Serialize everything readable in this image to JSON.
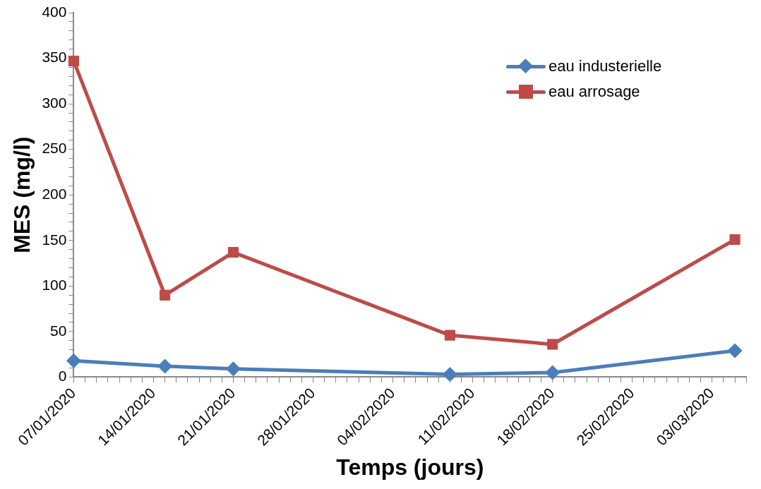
{
  "chart_data": {
    "type": "line",
    "xlabel": "Temps (jours)",
    "ylabel": "MES (mg/l)",
    "x": [
      "2020-01-07",
      "2020-01-15",
      "2020-01-21",
      "2020-02-09",
      "2020-02-18",
      "2020-03-05"
    ],
    "series": [
      {
        "name": "eau industerielle",
        "color": "#4a7ebb",
        "marker": "diamond",
        "values": [
          18,
          12,
          9,
          3,
          5,
          29
        ]
      },
      {
        "name": "eau arrosage",
        "color": "#be4b48",
        "marker": "square",
        "values": [
          347,
          90,
          137,
          46,
          36,
          151
        ]
      }
    ],
    "xlim": [
      "2020-01-07",
      "2020-03-06"
    ],
    "xticks": [
      {
        "value": "2020-01-07",
        "label": "07/01/2020"
      },
      {
        "value": "2020-01-08",
        "label": null
      },
      {
        "value": "2020-01-09",
        "label": null
      },
      {
        "value": "2020-01-10",
        "label": null
      },
      {
        "value": "2020-01-11",
        "label": null
      },
      {
        "value": "2020-01-12",
        "label": null
      },
      {
        "value": "2020-01-13",
        "label": null
      },
      {
        "value": "2020-01-14",
        "label": "14/01/2020"
      },
      {
        "value": "2020-01-15",
        "label": null
      },
      {
        "value": "2020-01-16",
        "label": null
      },
      {
        "value": "2020-01-17",
        "label": null
      },
      {
        "value": "2020-01-18",
        "label": null
      },
      {
        "value": "2020-01-19",
        "label": null
      },
      {
        "value": "2020-01-20",
        "label": null
      },
      {
        "value": "2020-01-21",
        "label": "21/01/2020"
      },
      {
        "value": "2020-01-22",
        "label": null
      },
      {
        "value": "2020-01-23",
        "label": null
      },
      {
        "value": "2020-01-24",
        "label": null
      },
      {
        "value": "2020-01-25",
        "label": null
      },
      {
        "value": "2020-01-26",
        "label": null
      },
      {
        "value": "2020-01-27",
        "label": null
      },
      {
        "value": "2020-01-28",
        "label": "28/01/2020"
      },
      {
        "value": "2020-01-29",
        "label": null
      },
      {
        "value": "2020-01-30",
        "label": null
      },
      {
        "value": "2020-01-31",
        "label": null
      },
      {
        "value": "2020-02-01",
        "label": null
      },
      {
        "value": "2020-02-02",
        "label": null
      },
      {
        "value": "2020-02-03",
        "label": null
      },
      {
        "value": "2020-02-04",
        "label": "04/02/2020"
      },
      {
        "value": "2020-02-05",
        "label": null
      },
      {
        "value": "2020-02-06",
        "label": null
      },
      {
        "value": "2020-02-07",
        "label": null
      },
      {
        "value": "2020-02-08",
        "label": null
      },
      {
        "value": "2020-02-09",
        "label": null
      },
      {
        "value": "2020-02-10",
        "label": null
      },
      {
        "value": "2020-02-11",
        "label": "11/02/2020"
      },
      {
        "value": "2020-02-12",
        "label": null
      },
      {
        "value": "2020-02-13",
        "label": null
      },
      {
        "value": "2020-02-14",
        "label": null
      },
      {
        "value": "2020-02-15",
        "label": null
      },
      {
        "value": "2020-02-16",
        "label": null
      },
      {
        "value": "2020-02-17",
        "label": null
      },
      {
        "value": "2020-02-18",
        "label": "18/02/2020"
      },
      {
        "value": "2020-02-19",
        "label": null
      },
      {
        "value": "2020-02-20",
        "label": null
      },
      {
        "value": "2020-02-21",
        "label": null
      },
      {
        "value": "2020-02-22",
        "label": null
      },
      {
        "value": "2020-02-23",
        "label": null
      },
      {
        "value": "2020-02-24",
        "label": null
      },
      {
        "value": "2020-02-25",
        "label": "25/02/2020"
      },
      {
        "value": "2020-02-26",
        "label": null
      },
      {
        "value": "2020-02-27",
        "label": null
      },
      {
        "value": "2020-02-28",
        "label": null
      },
      {
        "value": "2020-02-29",
        "label": null
      },
      {
        "value": "2020-03-01",
        "label": null
      },
      {
        "value": "2020-03-02",
        "label": null
      },
      {
        "value": "2020-03-03",
        "label": "03/03/2020"
      },
      {
        "value": "2020-03-04",
        "label": null
      },
      {
        "value": "2020-03-05",
        "label": null
      },
      {
        "value": "2020-03-06",
        "label": null
      }
    ],
    "ylim": [
      0,
      400
    ],
    "yticks": [
      0,
      {
        "value": 10,
        "label": null
      },
      {
        "value": 20,
        "label": null
      },
      {
        "value": 30,
        "label": null
      },
      {
        "value": 40,
        "label": null
      },
      50,
      {
        "value": 60,
        "label": null
      },
      {
        "value": 70,
        "label": null
      },
      {
        "value": 80,
        "label": null
      },
      {
        "value": 90,
        "label": null
      },
      100,
      {
        "value": 110,
        "label": null
      },
      {
        "value": 120,
        "label": null
      },
      {
        "value": 130,
        "label": null
      },
      {
        "value": 140,
        "label": null
      },
      150,
      {
        "value": 160,
        "label": null
      },
      {
        "value": 170,
        "label": null
      },
      {
        "value": 180,
        "label": null
      },
      {
        "value": 190,
        "label": null
      },
      200,
      {
        "value": 210,
        "label": null
      },
      {
        "value": 220,
        "label": null
      },
      {
        "value": 230,
        "label": null
      },
      {
        "value": 240,
        "label": null
      },
      250,
      {
        "value": 260,
        "label": null
      },
      {
        "value": 270,
        "label": null
      },
      {
        "value": 280,
        "label": null
      },
      {
        "value": 290,
        "label": null
      },
      300,
      {
        "value": 310,
        "label": null
      },
      {
        "value": 320,
        "label": null
      },
      {
        "value": 330,
        "label": null
      },
      {
        "value": 340,
        "label": null
      },
      350,
      {
        "value": 360,
        "label": null
      },
      {
        "value": 370,
        "label": null
      },
      {
        "value": 380,
        "label": null
      },
      {
        "value": 390,
        "label": null
      },
      400
    ],
    "grid": false,
    "legend": "top right",
    "line_style": "solid"
  }
}
